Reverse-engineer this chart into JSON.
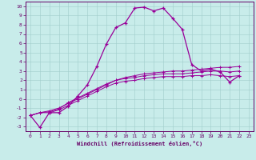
{
  "xlabel": "Windchill (Refroidissement éolien,°C)",
  "background_color": "#c8ecea",
  "grid_color": "#a0ccca",
  "line_color": "#990099",
  "spine_color": "#660066",
  "xlim": [
    -0.5,
    23.5
  ],
  "ylim": [
    -3.5,
    10.5
  ],
  "xticks": [
    0,
    1,
    2,
    3,
    4,
    5,
    6,
    7,
    8,
    9,
    10,
    11,
    12,
    13,
    14,
    15,
    16,
    17,
    18,
    19,
    20,
    21,
    22,
    23
  ],
  "yticks": [
    -3,
    -2,
    -1,
    0,
    1,
    2,
    3,
    4,
    5,
    6,
    7,
    8,
    9,
    10
  ],
  "series0": [
    -1.8,
    -3.1,
    -1.5,
    -1.5,
    -0.8,
    0.3,
    1.5,
    3.5,
    5.9,
    7.7,
    8.2,
    9.8,
    9.9,
    9.5,
    9.8,
    8.7,
    7.5,
    3.7,
    3.0,
    3.2,
    2.9,
    1.8,
    2.5
  ],
  "series1": [
    -1.8,
    -1.5,
    -1.3,
    -1.0,
    -0.5,
    0.0,
    0.5,
    1.0,
    1.5,
    2.0,
    2.3,
    2.5,
    2.7,
    2.8,
    2.9,
    3.0,
    3.0,
    3.1,
    3.2,
    3.3,
    3.4,
    3.4,
    3.5
  ],
  "series2": [
    -1.8,
    -1.5,
    -1.4,
    -1.1,
    -0.4,
    0.1,
    0.6,
    1.1,
    1.6,
    2.0,
    2.2,
    2.3,
    2.5,
    2.6,
    2.7,
    2.7,
    2.7,
    2.8,
    2.9,
    3.0,
    3.0,
    2.9,
    3.0
  ],
  "series3": [
    -1.8,
    -1.5,
    -1.5,
    -1.2,
    -0.7,
    -0.2,
    0.3,
    0.8,
    1.3,
    1.7,
    1.9,
    2.0,
    2.2,
    2.3,
    2.4,
    2.4,
    2.4,
    2.5,
    2.5,
    2.6,
    2.5,
    2.4,
    2.5
  ]
}
